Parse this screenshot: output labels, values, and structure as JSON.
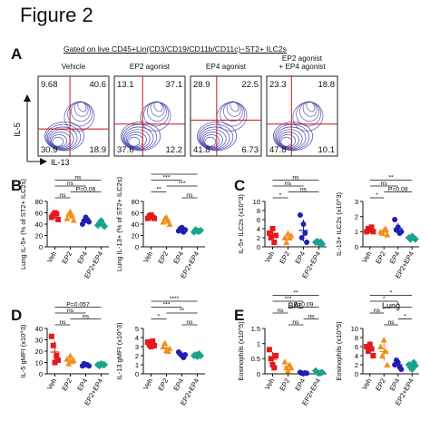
{
  "figure_title": "Figure 2",
  "panels": {
    "a": "A",
    "b": "B",
    "c": "C",
    "d": "D",
    "e": "E"
  },
  "gate_label": "Gated on live CD45+Lin(CD3/CD19/CD11b/CD11c)−ST2+ ILC2s",
  "flow": {
    "x_axis": "IL-13",
    "y_axis": "IL-5",
    "plots": [
      {
        "title": "Vehicle",
        "q": [
          "9.68",
          "40.6",
          "30.9",
          "18.9"
        ]
      },
      {
        "title": "EP2 agonist",
        "q": [
          "13.1",
          "37.1",
          "37.6",
          "12.2"
        ]
      },
      {
        "title": "EP4 agonist",
        "q": [
          "28.9",
          "22.5",
          "41.8",
          "6.73"
        ]
      },
      {
        "title": "EP2 agonist\n+ EP4 agonist",
        "q": [
          "23.3",
          "18.8",
          "47.8",
          "10.1"
        ]
      }
    ]
  },
  "groups": [
    "Veh",
    "EP2",
    "EP4",
    "EP2+EP4"
  ],
  "colors": {
    "Veh": "#e31a1c",
    "EP2": "#f28f1c",
    "EP4": "#1f1fb4",
    "EP2+EP4": "#19a38e",
    "contour": "#3d3da6",
    "gate": "#c0141c"
  },
  "chart_data": [
    {
      "type": "scatter",
      "panel": "B",
      "ylabel": "Lung IL-5+ (% of ST2+ ILC2s)",
      "ylim": [
        0,
        80
      ],
      "yticks": [
        0,
        20,
        40,
        60,
        80
      ],
      "series": [
        {
          "name": "Veh",
          "values": [
            52,
            56,
            60,
            58,
            48
          ]
        },
        {
          "name": "EP2",
          "values": [
            50,
            58,
            62,
            55,
            47
          ]
        },
        {
          "name": "EP4",
          "values": [
            40,
            46,
            52,
            48,
            44
          ]
        },
        {
          "name": "EP2+EP4",
          "values": [
            38,
            42,
            46,
            40,
            36
          ]
        }
      ],
      "annotations": [
        "ns",
        "ns",
        "P=0.06",
        "ns"
      ]
    },
    {
      "type": "scatter",
      "panel": "B",
      "ylabel": "Lung IL-13+ (% of ST2+ ILC2s)",
      "ylim": [
        0,
        80
      ],
      "yticks": [
        0,
        20,
        40,
        60,
        80
      ],
      "series": [
        {
          "name": "Veh",
          "values": [
            50,
            54,
            56,
            52,
            50
          ]
        },
        {
          "name": "EP2",
          "values": [
            44,
            50,
            52,
            46,
            40
          ]
        },
        {
          "name": "EP4",
          "values": [
            28,
            32,
            34,
            26,
            30
          ]
        },
        {
          "name": "EP2+EP4",
          "values": [
            26,
            30,
            28,
            27,
            29
          ]
        }
      ],
      "annotations": [
        "****",
        "***",
        "***",
        "**",
        "ns"
      ]
    },
    {
      "type": "scatter",
      "panel": "C",
      "ylabel": "IL-5+ ILC2s (x10^3)",
      "ylim": [
        0,
        10
      ],
      "yticks": [
        0,
        2,
        4,
        6,
        8,
        10
      ],
      "series": [
        {
          "name": "Veh",
          "values": [
            3,
            2,
            4,
            1,
            2.5
          ]
        },
        {
          "name": "EP2",
          "values": [
            2,
            1,
            3,
            2,
            2.5
          ]
        },
        {
          "name": "EP4",
          "values": [
            7,
            2,
            5,
            3,
            1
          ]
        },
        {
          "name": "EP2+EP4",
          "values": [
            1,
            1.2,
            0.8,
            1.1,
            0.6
          ]
        }
      ],
      "annotations": [
        "ns",
        "ns",
        "ns",
        "*"
      ]
    },
    {
      "type": "scatter",
      "panel": "C",
      "ylabel": "IL-13+ ILC2s (x10^3)",
      "ylim": [
        0,
        3
      ],
      "yticks": [
        0,
        1,
        2,
        3
      ],
      "series": [
        {
          "name": "Veh",
          "values": [
            1.0,
            1.2,
            1.1,
            1.3,
            1.0
          ]
        },
        {
          "name": "EP2",
          "values": [
            1.0,
            0.9,
            1.1,
            1.2,
            0.8
          ]
        },
        {
          "name": "EP4",
          "values": [
            1.8,
            1.1,
            1.3,
            0.9,
            1.0
          ]
        },
        {
          "name": "EP2+EP4",
          "values": [
            0.6,
            0.5,
            0.7,
            0.6,
            0.5
          ]
        }
      ],
      "annotations": [
        "**",
        "ns",
        "P=0.08",
        "*"
      ]
    },
    {
      "type": "scatter",
      "panel": "D",
      "ylabel": "IL-5 gMFI (x10^3)",
      "ylim": [
        0,
        40
      ],
      "yticks": [
        0,
        10,
        20,
        30,
        40
      ],
      "series": [
        {
          "name": "Veh",
          "values": [
            33,
            25,
            10,
            16,
            12
          ]
        },
        {
          "name": "EP2",
          "values": [
            13,
            9,
            16,
            11,
            12
          ]
        },
        {
          "name": "EP4",
          "values": [
            7,
            9,
            8,
            8,
            7
          ]
        },
        {
          "name": "EP2+EP4",
          "values": [
            8,
            7,
            9,
            8,
            8
          ]
        }
      ],
      "annotations": [
        "P=0.057",
        "ns",
        "ns",
        "ns"
      ]
    },
    {
      "type": "scatter",
      "panel": "D",
      "ylabel": "IL-13 gMFI (x10^3)",
      "ylim": [
        0,
        5
      ],
      "yticks": [
        0,
        1,
        2,
        3,
        4,
        5
      ],
      "series": [
        {
          "name": "Veh",
          "values": [
            3.5,
            3.2,
            3.0,
            3.6,
            3.1
          ]
        },
        {
          "name": "EP2",
          "values": [
            3.0,
            3.4,
            2.6,
            2.5,
            2.8
          ]
        },
        {
          "name": "EP4",
          "values": [
            2.4,
            2.2,
            2.0,
            1.8,
            2.1
          ]
        },
        {
          "name": "EP2+EP4",
          "values": [
            2.0,
            2.1,
            1.9,
            2.2,
            2.0
          ]
        }
      ],
      "annotations": [
        "****",
        "***",
        "**",
        "*",
        "ns"
      ]
    },
    {
      "type": "scatter",
      "panel": "E",
      "title": "BAL",
      "ylabel": "Eosinophils (x10^5)",
      "ylim": [
        0,
        1.5
      ],
      "yticks": [
        0,
        0.5,
        1.0,
        1.5
      ],
      "series": [
        {
          "name": "Veh",
          "values": [
            0.8,
            0.5,
            0.3,
            0.2,
            0.6
          ]
        },
        {
          "name": "EP2",
          "values": [
            0.4,
            0.2,
            0.1,
            0.3,
            0.2
          ]
        },
        {
          "name": "EP4",
          "values": [
            0.05,
            0.02,
            0.01,
            0.03,
            0.02
          ]
        },
        {
          "name": "EP2+EP4",
          "values": [
            0.1,
            0.05,
            0.02,
            0.03,
            0.05
          ]
        }
      ],
      "annotations": [
        "**",
        "***",
        "P=0.09",
        "ns",
        "ns",
        "ns"
      ]
    },
    {
      "type": "scatter",
      "panel": "E",
      "title": "Lung",
      "ylabel": "Eosinophils (x10^5)",
      "ylim": [
        0,
        10
      ],
      "yticks": [
        0,
        2,
        4,
        6,
        8,
        10
      ],
      "series": [
        {
          "name": "Veh",
          "values": [
            6,
            5,
            6.5,
            5.5,
            4
          ]
        },
        {
          "name": "EP2",
          "values": [
            6,
            4,
            7.5,
            5,
            2
          ]
        },
        {
          "name": "EP4",
          "values": [
            2,
            3,
            2.5,
            1.5,
            1
          ]
        },
        {
          "name": "EP2+EP4",
          "values": [
            2,
            1.5,
            1,
            2.5,
            1.8
          ]
        }
      ],
      "annotations": [
        "*",
        "*",
        "*",
        "ns",
        "*",
        "ns"
      ]
    }
  ]
}
